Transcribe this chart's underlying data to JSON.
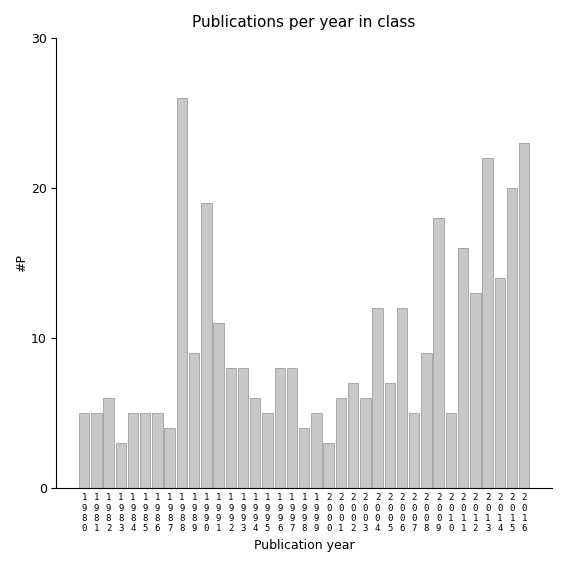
{
  "title": "Publications per year in class",
  "xlabel": "Publication year",
  "ylabel": "#P",
  "bar_color": "#c8c8c8",
  "bar_edgecolor": "#909090",
  "ylim": [
    0,
    30
  ],
  "yticks": [
    0,
    10,
    20,
    30
  ],
  "years": [
    1980,
    1981,
    1982,
    1983,
    1984,
    1985,
    1986,
    1987,
    1988,
    1989,
    1990,
    1991,
    1992,
    1993,
    1994,
    1995,
    1996,
    1997,
    1998,
    1999,
    2000,
    2001,
    2002,
    2003,
    2004,
    2005,
    2006,
    2007,
    2008,
    2009,
    2010,
    2011,
    2012,
    2013,
    2014,
    2015,
    2016
  ],
  "values": [
    5,
    5,
    6,
    3,
    5,
    5,
    5,
    4,
    26,
    9,
    19,
    11,
    8,
    8,
    6,
    5,
    8,
    8,
    4,
    5,
    3,
    6,
    7,
    6,
    12,
    7,
    12,
    5,
    9,
    18,
    5,
    16,
    13,
    22,
    14,
    20,
    23
  ]
}
